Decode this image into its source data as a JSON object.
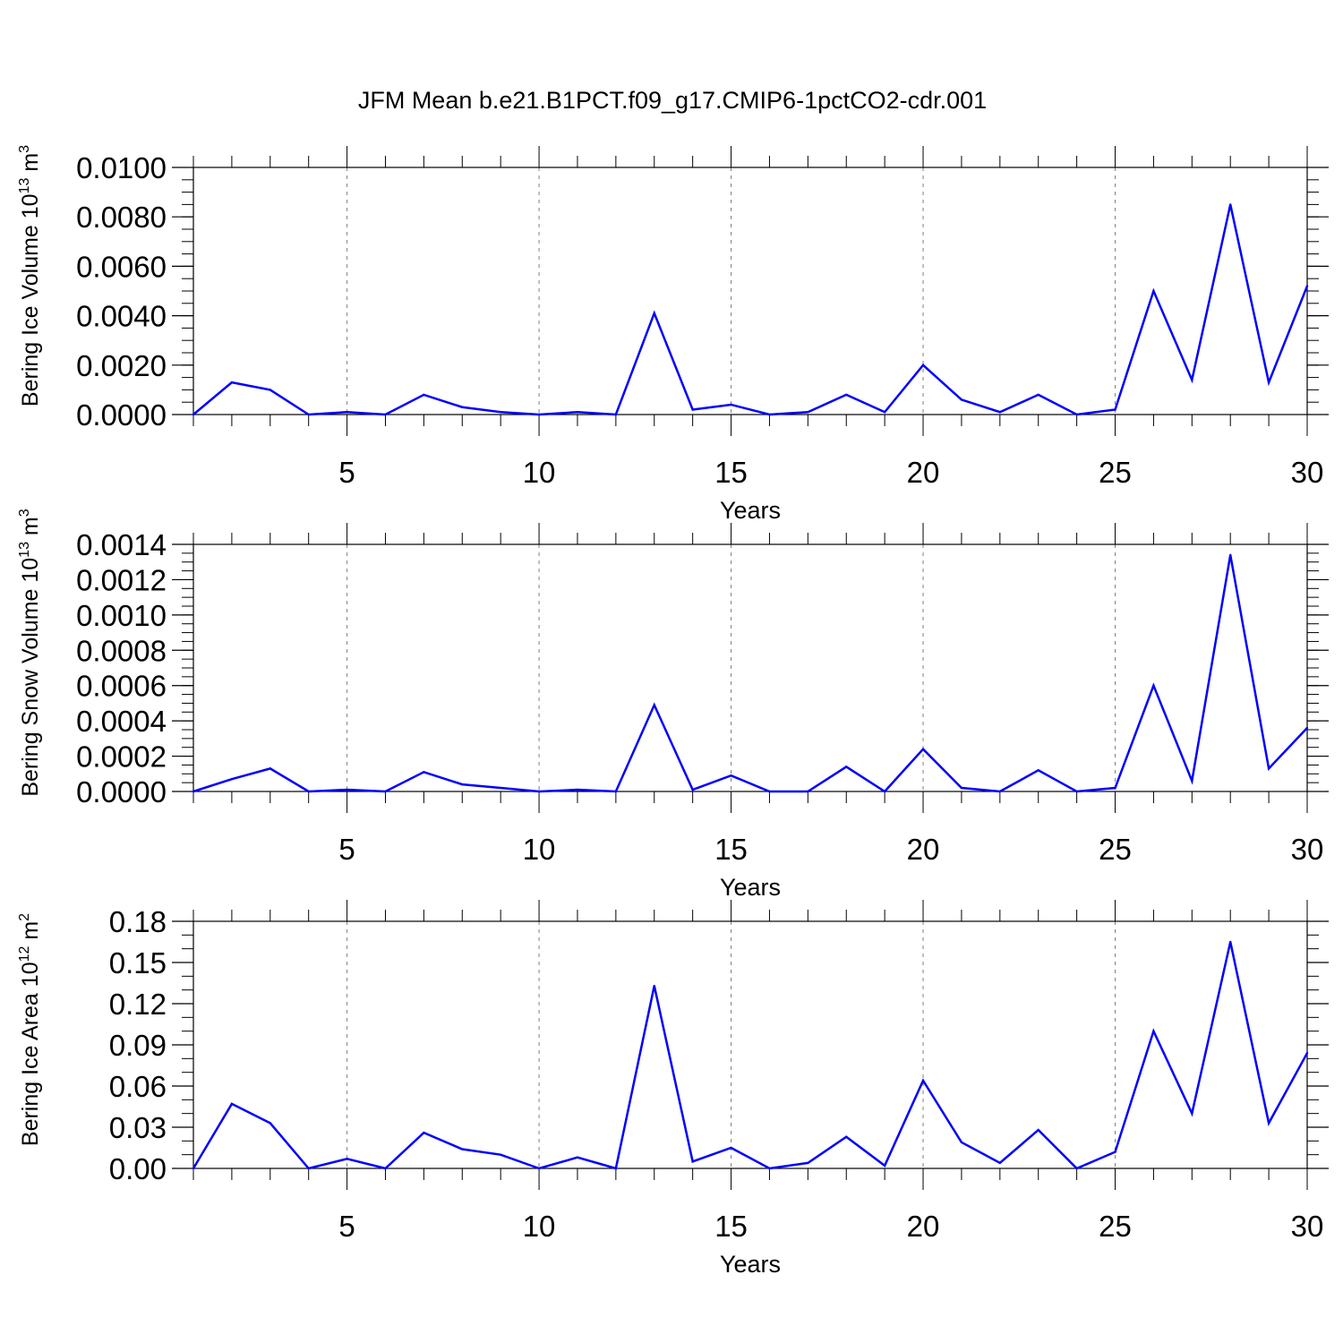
{
  "figure_title": "JFM Mean b.e21.B1PCT.f09_g17.CMIP6-1pctCO2-cdr.001",
  "colors": {
    "line": "#0000ff",
    "axis": "#000000",
    "grid": "#7f7f7f"
  },
  "chart_data": [
    {
      "type": "line",
      "title": "",
      "xlabel": "Years",
      "ylabel": {
        "text": "Bering Ice Volume 10",
        "exp": "13",
        "unit": " m",
        "unit_exp": "3"
      },
      "xlim": [
        1,
        30
      ],
      "ylim": [
        0,
        0.01
      ],
      "x_ticks": [
        5,
        10,
        15,
        20,
        25,
        30
      ],
      "x_tick_labels": [
        "5",
        "10",
        "15",
        "20",
        "25",
        "30"
      ],
      "y_ticks": [
        0,
        0.002,
        0.004,
        0.006,
        0.008,
        0.01
      ],
      "y_tick_labels": [
        "0.0000",
        "0.0020",
        "0.0040",
        "0.0060",
        "0.0080",
        "0.0100"
      ],
      "y_minor_step": 0.0005,
      "grid": "dashed vertical at major x ticks",
      "x": [
        1,
        2,
        3,
        4,
        5,
        6,
        7,
        8,
        9,
        10,
        11,
        12,
        13,
        14,
        15,
        16,
        17,
        18,
        19,
        20,
        21,
        22,
        23,
        24,
        25,
        26,
        27,
        28,
        29,
        30
      ],
      "series": [
        {
          "values": [
            0.0,
            0.0013,
            0.001,
            0.0,
            0.0001,
            0.0,
            0.0008,
            0.0003,
            0.0001,
            0.0,
            0.0001,
            0.0,
            0.0041,
            0.0002,
            0.0004,
            0.0,
            0.0001,
            0.0008,
            0.0001,
            0.002,
            0.0006,
            0.0001,
            0.0008,
            0.0,
            0.0002,
            0.005,
            0.0014,
            0.0085,
            0.0013,
            0.0052
          ]
        }
      ]
    },
    {
      "type": "line",
      "title": "",
      "xlabel": "Years",
      "ylabel": {
        "text": "Bering Snow Volume 10",
        "exp": "13",
        "unit": " m",
        "unit_exp": "3"
      },
      "xlim": [
        1,
        30
      ],
      "ylim": [
        0,
        0.0014
      ],
      "x_ticks": [
        5,
        10,
        15,
        20,
        25,
        30
      ],
      "x_tick_labels": [
        "5",
        "10",
        "15",
        "20",
        "25",
        "30"
      ],
      "y_ticks": [
        0,
        0.0002,
        0.0004,
        0.0006,
        0.0008,
        0.001,
        0.0012,
        0.0014
      ],
      "y_tick_labels": [
        "0.0000",
        "0.0002",
        "0.0004",
        "0.0006",
        "0.0008",
        "0.0010",
        "0.0012",
        "0.0014"
      ],
      "y_minor_step": 5e-05,
      "grid": "dashed vertical at major x ticks",
      "x": [
        1,
        2,
        3,
        4,
        5,
        6,
        7,
        8,
        9,
        10,
        11,
        12,
        13,
        14,
        15,
        16,
        17,
        18,
        19,
        20,
        21,
        22,
        23,
        24,
        25,
        26,
        27,
        28,
        29,
        30
      ],
      "series": [
        {
          "values": [
            0.0,
            7e-05,
            0.00013,
            0.0,
            1e-05,
            0.0,
            0.00011,
            4e-05,
            2e-05,
            0.0,
            1e-05,
            0.0,
            0.00049,
            1e-05,
            9e-05,
            0.0,
            0.0,
            0.00014,
            0.0,
            0.00024,
            2e-05,
            0.0,
            0.00012,
            0.0,
            2e-05,
            0.0006,
            6e-05,
            0.00134,
            0.00013,
            0.00036
          ]
        }
      ]
    },
    {
      "type": "line",
      "title": "",
      "xlabel": "Years",
      "ylabel": {
        "text": "Bering Ice Area 10",
        "exp": "12",
        "unit": " m",
        "unit_exp": "2"
      },
      "xlim": [
        1,
        30
      ],
      "ylim": [
        0,
        0.18
      ],
      "x_ticks": [
        5,
        10,
        15,
        20,
        25,
        30
      ],
      "x_tick_labels": [
        "5",
        "10",
        "15",
        "20",
        "25",
        "30"
      ],
      "y_ticks": [
        0,
        0.03,
        0.06,
        0.09,
        0.12,
        0.15,
        0.18
      ],
      "y_tick_labels": [
        "0.00",
        "0.03",
        "0.06",
        "0.09",
        "0.12",
        "0.15",
        "0.18"
      ],
      "y_minor_step": 0.01,
      "grid": "dashed vertical at major x ticks",
      "x": [
        1,
        2,
        3,
        4,
        5,
        6,
        7,
        8,
        9,
        10,
        11,
        12,
        13,
        14,
        15,
        16,
        17,
        18,
        19,
        20,
        21,
        22,
        23,
        24,
        25,
        26,
        27,
        28,
        29,
        30
      ],
      "series": [
        {
          "values": [
            0.0,
            0.047,
            0.033,
            0.0,
            0.007,
            0.0,
            0.026,
            0.014,
            0.01,
            0.0,
            0.008,
            0.0,
            0.133,
            0.005,
            0.015,
            0.0,
            0.004,
            0.023,
            0.002,
            0.064,
            0.019,
            0.004,
            0.028,
            0.0,
            0.012,
            0.1,
            0.04,
            0.165,
            0.033,
            0.084
          ]
        }
      ]
    }
  ]
}
